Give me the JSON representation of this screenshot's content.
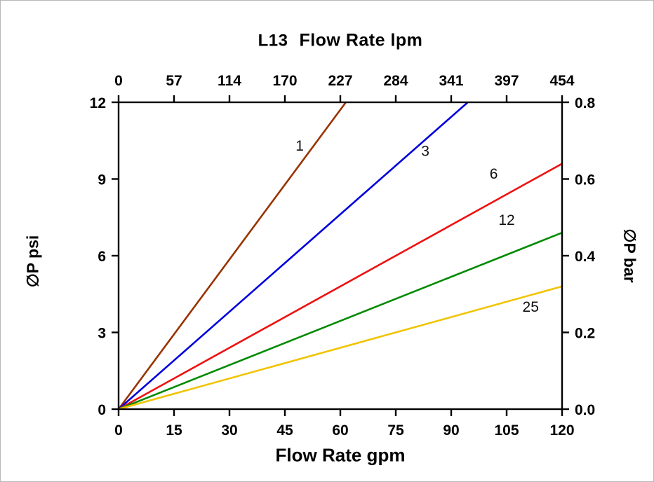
{
  "chart_data": {
    "type": "line",
    "title_model": "L13",
    "grid": false,
    "legend": "inline-labels",
    "x_top": {
      "label": "Flow Rate lpm",
      "ticks": [
        "0",
        "57",
        "114",
        "170",
        "227",
        "284",
        "341",
        "397",
        "454"
      ]
    },
    "x_bottom": {
      "label": "Flow Rate gpm",
      "ticks": [
        "0",
        "15",
        "30",
        "45",
        "60",
        "75",
        "90",
        "105",
        "120"
      ],
      "range": [
        0,
        120
      ]
    },
    "y_left": {
      "label": "∅P psi",
      "ticks": [
        "0",
        "3",
        "6",
        "9",
        "12"
      ],
      "range": [
        0,
        12
      ]
    },
    "y_right": {
      "label": "∅P bar",
      "ticks": [
        "0.0",
        "0.2",
        "0.4",
        "0.6",
        "0.8"
      ],
      "range": [
        0,
        0.8
      ]
    },
    "series": [
      {
        "name": "1",
        "color": "#993300",
        "points_gpm_psi": [
          [
            0,
            0
          ],
          [
            61.5,
            12
          ]
        ],
        "label_gpm": 49,
        "label_psi": 10.3
      },
      {
        "name": "3",
        "color": "#0000dd",
        "points_gpm_psi": [
          [
            0,
            0
          ],
          [
            94.5,
            12
          ]
        ],
        "label_gpm": 83,
        "label_psi": 10.1
      },
      {
        "name": "6",
        "color": "#ee1111",
        "points_gpm_psi": [
          [
            0,
            0
          ],
          [
            120,
            9.6
          ]
        ],
        "label_gpm": 101.5,
        "label_psi": 9.2
      },
      {
        "name": "12",
        "color": "#008a00",
        "points_gpm_psi": [
          [
            0,
            0
          ],
          [
            120,
            6.9
          ]
        ],
        "label_gpm": 105,
        "label_psi": 7.4
      },
      {
        "name": "25",
        "color": "#f0c400",
        "points_gpm_psi": [
          [
            0,
            0
          ],
          [
            120,
            4.8
          ]
        ],
        "label_gpm": 111.5,
        "label_psi": 4.0
      }
    ]
  }
}
